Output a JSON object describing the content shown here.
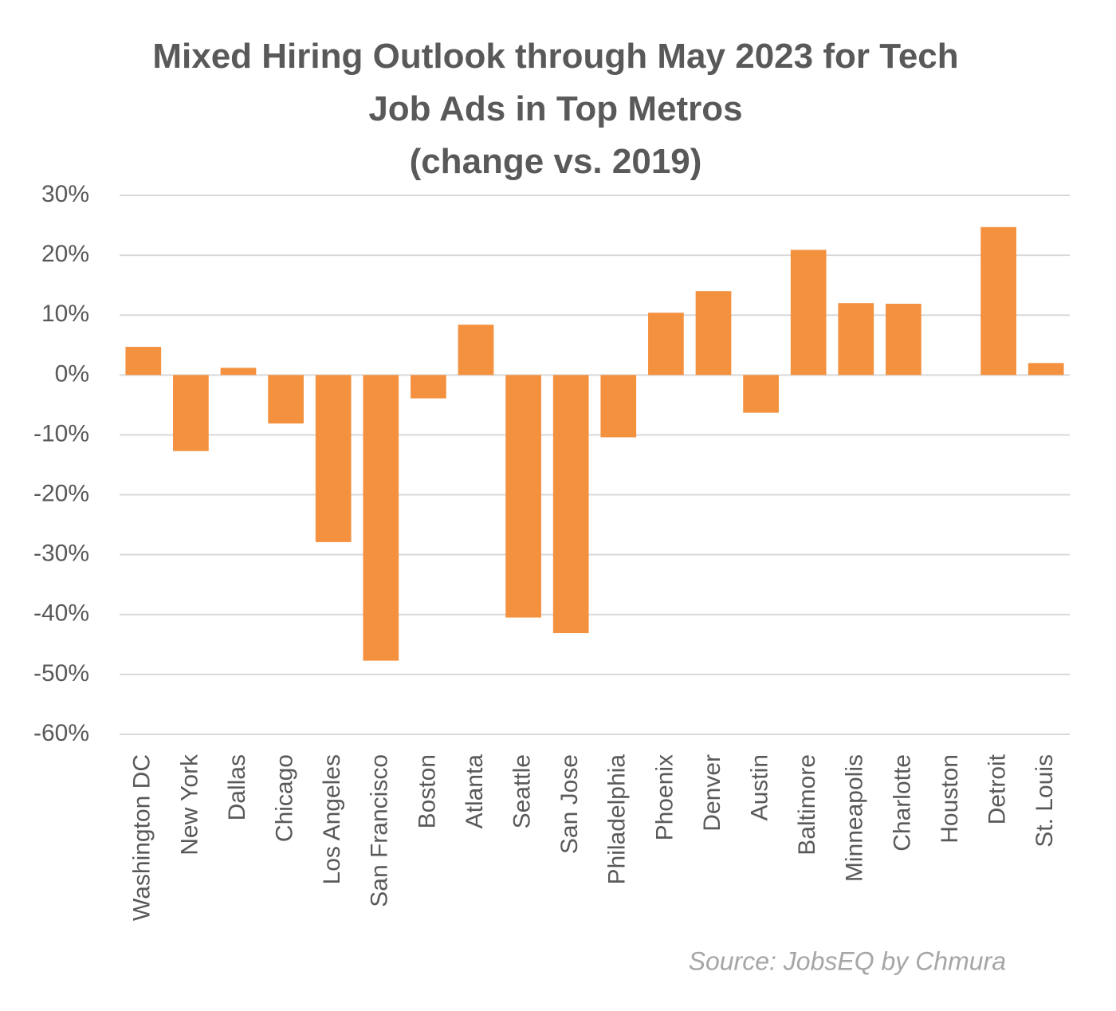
{
  "chart_data": {
    "type": "bar",
    "title": "Mixed Hiring Outlook through May 2023 for Tech Job Ads in Top Metros",
    "subtitle": "(change vs. 2019)",
    "source": "Source: JobsEQ by Chmura",
    "categories": [
      "Washington DC",
      "New York",
      "Dallas",
      "Chicago",
      "Los Angeles",
      "San Francisco",
      "Boston",
      "Atlanta",
      "Seattle",
      "San Jose",
      "Philadelphia",
      "Phoenix",
      "Denver",
      "Austin",
      "Baltimore",
      "Minneapolis",
      "Charlotte",
      "Houston",
      "Detroit",
      "St. Louis"
    ],
    "values": [
      4.7,
      -12.7,
      1.2,
      -8.1,
      -27.9,
      -47.7,
      -3.9,
      8.4,
      -40.5,
      -43.1,
      -10.4,
      10.4,
      14.0,
      -6.3,
      20.9,
      12.0,
      11.9,
      0,
      24.7,
      2.0
    ],
    "color": "#f4913f",
    "ylim": [
      -60,
      30
    ],
    "yticks": [
      {
        "value": -60,
        "label": "-60%"
      },
      {
        "value": -50,
        "label": "-50%"
      },
      {
        "value": -40,
        "label": "-40%"
      },
      {
        "value": -30,
        "label": "-30%"
      },
      {
        "value": -20,
        "label": "-20%"
      },
      {
        "value": -10,
        "label": "-10%"
      },
      {
        "value": 0,
        "label": "0%"
      },
      {
        "value": 10,
        "label": "10%"
      },
      {
        "value": 20,
        "label": "20%"
      },
      {
        "value": 30,
        "label": "30%"
      }
    ],
    "grid": true
  }
}
